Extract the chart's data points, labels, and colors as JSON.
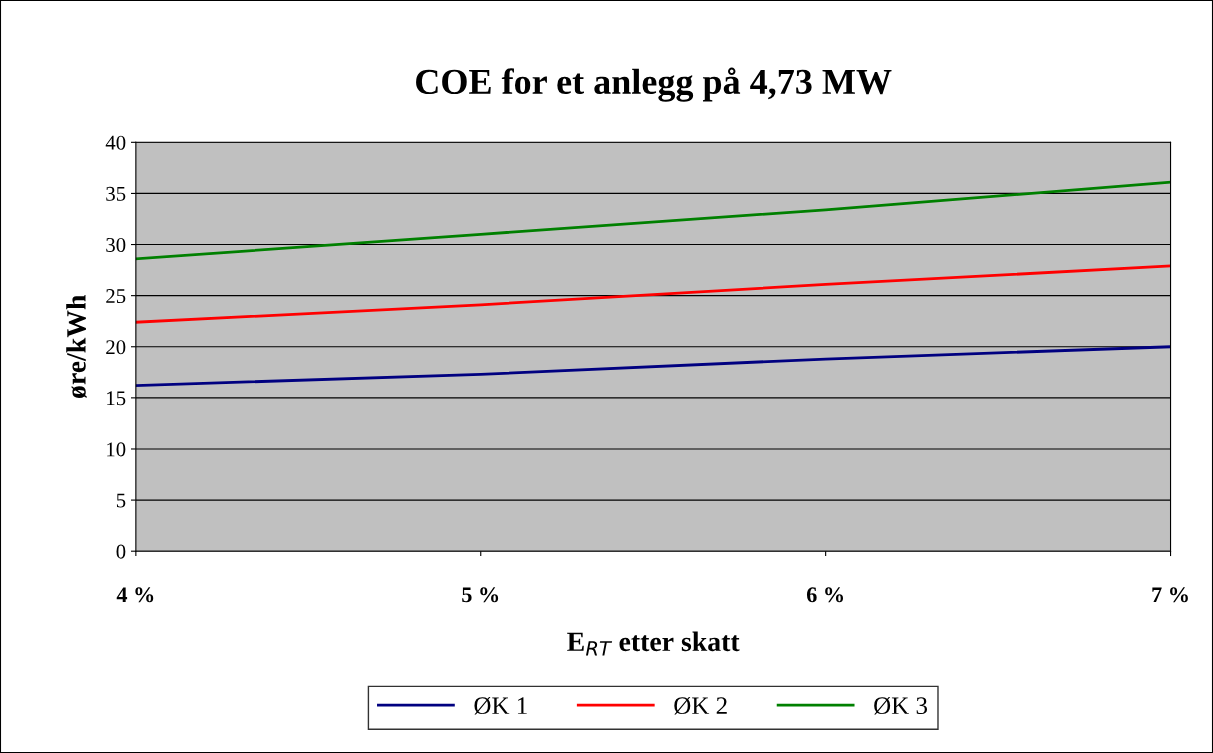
{
  "chart_data": {
    "type": "line",
    "title": "COE for et anlegg på 4,73 MW",
    "xlabel": "E$_{RT}$ etter skatt",
    "ylabel": "øre/kWh",
    "x": [
      4,
      5,
      6,
      7
    ],
    "xlim": [
      4,
      7
    ],
    "xticks": [
      {
        "value": 4,
        "label": "4 %"
      },
      {
        "value": 5,
        "label": "5 %"
      },
      {
        "value": 6,
        "label": "6 %"
      },
      {
        "value": 7,
        "label": "7 %"
      }
    ],
    "ylim": [
      0,
      40
    ],
    "yticks": [
      0,
      5,
      10,
      15,
      20,
      25,
      30,
      35,
      40
    ],
    "grid": "y",
    "legend": "bottom",
    "marker": "none",
    "line_style": "solid",
    "series": [
      {
        "name": "ØK 1",
        "color": "#000080",
        "values": [
          16.2,
          17.3,
          18.8,
          20.0
        ]
      },
      {
        "name": "ØK 2",
        "color": "#ff0000",
        "values": [
          22.4,
          24.1,
          26.1,
          27.9
        ]
      },
      {
        "name": "ØK 3",
        "color": "#008000",
        "values": [
          28.6,
          31.0,
          33.4,
          36.1
        ]
      }
    ]
  }
}
